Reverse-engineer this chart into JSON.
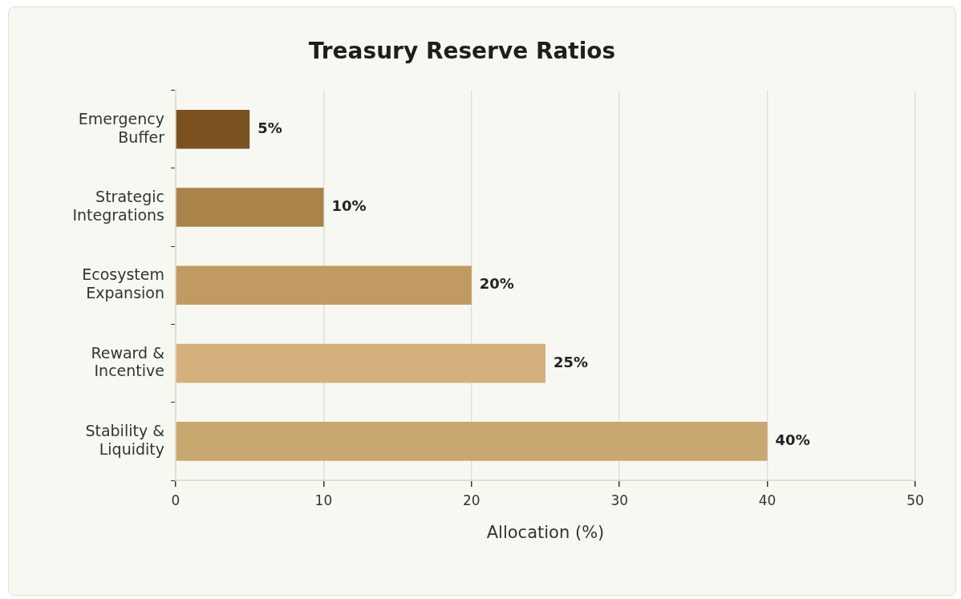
{
  "chart_data": {
    "type": "bar",
    "orientation": "horizontal",
    "title": "Treasury Reserve Ratios",
    "xlabel": "Allocation (%)",
    "categories": [
      "Emergency Buffer",
      "Strategic Integrations",
      "Ecosystem Expansion",
      "Reward & Incentive",
      "Stability & Liquidity"
    ],
    "values": [
      5,
      10,
      20,
      25,
      40
    ],
    "colors": [
      "#7a5221",
      "#a9834a",
      "#c09a62",
      "#d4b07c",
      "#c9a770"
    ],
    "value_labels": [
      "5%",
      "10%",
      "20%",
      "25%",
      "40%"
    ],
    "xlim": [
      0,
      50
    ],
    "xticks": [
      0,
      10,
      20,
      30,
      40,
      50
    ],
    "grid": "x",
    "legend": false
  }
}
